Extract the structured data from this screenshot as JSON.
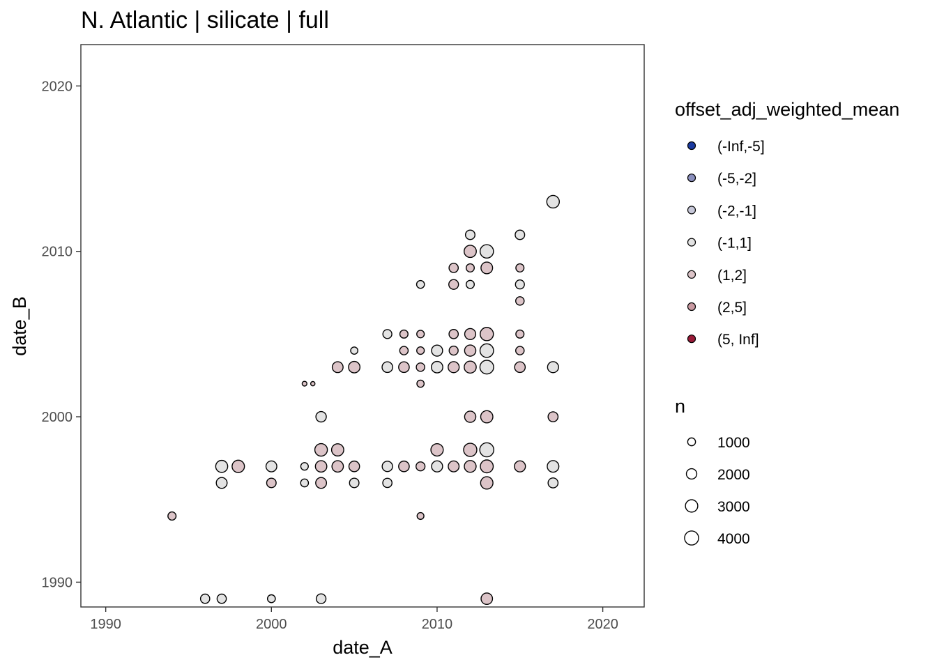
{
  "chart_data": {
    "type": "scatter",
    "title": "N. Atlantic | silicate | full",
    "xlabel": "date_A",
    "ylabel": "date_B",
    "xlim": [
      1988.5,
      2022.5
    ],
    "ylim": [
      1988.5,
      2022.5
    ],
    "x_ticks": [
      "1990",
      "2000",
      "2010",
      "2020"
    ],
    "y_ticks": [
      "1990",
      "2000",
      "2010",
      "2020"
    ],
    "grid": false,
    "legend_position": "right",
    "color_legend": {
      "title": "offset_adj_weighted_mean",
      "entries": [
        {
          "label": "(-Inf,-5]",
          "color": "#1a3aa0"
        },
        {
          "label": "(-5,-2]",
          "color": "#8a8fbd"
        },
        {
          "label": "(-2,-1]",
          "color": "#c6c7d8"
        },
        {
          "label": "(-1,1]",
          "color": "#e3e3e3"
        },
        {
          "label": "(1,2]",
          "color": "#dcc4c8"
        },
        {
          "label": "(2,5]",
          "color": "#c99aa2"
        },
        {
          "label": "(5, Inf]",
          "color": "#9a1a38"
        }
      ]
    },
    "size_legend": {
      "title": "n",
      "entries": [
        {
          "label": "1000",
          "value": 1000
        },
        {
          "label": "2000",
          "value": 2000
        },
        {
          "label": "3000",
          "value": 3000
        },
        {
          "label": "4000",
          "value": 4000
        }
      ]
    },
    "points": [
      {
        "x": 1994,
        "y": 1994,
        "n": 1100,
        "group": "(1,2]"
      },
      {
        "x": 1996,
        "y": 1989,
        "n": 1500,
        "group": "(-1,1]"
      },
      {
        "x": 1997,
        "y": 1989,
        "n": 1500,
        "group": "(-1,1]"
      },
      {
        "x": 1997,
        "y": 1996,
        "n": 2200,
        "group": "(-1,1]"
      },
      {
        "x": 1997,
        "y": 1997,
        "n": 2800,
        "group": "(-1,1]"
      },
      {
        "x": 1998,
        "y": 1997,
        "n": 3000,
        "group": "(1,2]"
      },
      {
        "x": 2000,
        "y": 1989,
        "n": 1000,
        "group": "(-1,1]"
      },
      {
        "x": 2000,
        "y": 1996,
        "n": 1600,
        "group": "(1,2]"
      },
      {
        "x": 2000,
        "y": 1997,
        "n": 2200,
        "group": "(-1,1]"
      },
      {
        "x": 2002,
        "y": 1996,
        "n": 1000,
        "group": "(-1,1]"
      },
      {
        "x": 2002,
        "y": 1997,
        "n": 900,
        "group": "(-1,1]"
      },
      {
        "x": 2002,
        "y": 2002,
        "n": 250,
        "group": "(1,2]"
      },
      {
        "x": 2002.5,
        "y": 2002,
        "n": 180,
        "group": "(1,2]"
      },
      {
        "x": 2003,
        "y": 1989,
        "n": 1700,
        "group": "(-1,1]"
      },
      {
        "x": 2003,
        "y": 1996,
        "n": 2200,
        "group": "(1,2]"
      },
      {
        "x": 2003,
        "y": 1997,
        "n": 2500,
        "group": "(1,2]"
      },
      {
        "x": 2003,
        "y": 1998,
        "n": 3100,
        "group": "(1,2]"
      },
      {
        "x": 2003,
        "y": 2000,
        "n": 2000,
        "group": "(-1,1]"
      },
      {
        "x": 2004,
        "y": 1997,
        "n": 2500,
        "group": "(1,2]"
      },
      {
        "x": 2004,
        "y": 1998,
        "n": 2900,
        "group": "(1,2]"
      },
      {
        "x": 2004,
        "y": 2003,
        "n": 2200,
        "group": "(1,2]"
      },
      {
        "x": 2005,
        "y": 1996,
        "n": 1600,
        "group": "(-1,1]"
      },
      {
        "x": 2005,
        "y": 1997,
        "n": 2100,
        "group": "(1,2]"
      },
      {
        "x": 2005,
        "y": 2003,
        "n": 2500,
        "group": "(1,2]"
      },
      {
        "x": 2005,
        "y": 2004,
        "n": 800,
        "group": "(-1,1]"
      },
      {
        "x": 2007,
        "y": 1996,
        "n": 1500,
        "group": "(-1,1]"
      },
      {
        "x": 2007,
        "y": 1997,
        "n": 2000,
        "group": "(-1,1]"
      },
      {
        "x": 2007,
        "y": 2003,
        "n": 2100,
        "group": "(-1,1]"
      },
      {
        "x": 2007,
        "y": 2005,
        "n": 1400,
        "group": "(-1,1]"
      },
      {
        "x": 2008,
        "y": 1997,
        "n": 2100,
        "group": "(1,2]"
      },
      {
        "x": 2008,
        "y": 2003,
        "n": 2100,
        "group": "(1,2]"
      },
      {
        "x": 2008,
        "y": 2004,
        "n": 1200,
        "group": "(1,2]"
      },
      {
        "x": 2008,
        "y": 2005,
        "n": 1100,
        "group": "(1,2]"
      },
      {
        "x": 2009,
        "y": 1994,
        "n": 700,
        "group": "(1,2]"
      },
      {
        "x": 2009,
        "y": 1997,
        "n": 1400,
        "group": "(1,2]"
      },
      {
        "x": 2009,
        "y": 2002,
        "n": 800,
        "group": "(1,2]"
      },
      {
        "x": 2009,
        "y": 2003,
        "n": 1200,
        "group": "(1,2]"
      },
      {
        "x": 2009,
        "y": 2004,
        "n": 900,
        "group": "(1,2]"
      },
      {
        "x": 2009,
        "y": 2005,
        "n": 900,
        "group": "(1,2]"
      },
      {
        "x": 2009,
        "y": 2008,
        "n": 1000,
        "group": "(-1,1]"
      },
      {
        "x": 2010,
        "y": 1997,
        "n": 2300,
        "group": "(-1,1]"
      },
      {
        "x": 2010,
        "y": 1998,
        "n": 3000,
        "group": "(1,2]"
      },
      {
        "x": 2010,
        "y": 2003,
        "n": 2500,
        "group": "(-1,1]"
      },
      {
        "x": 2010,
        "y": 2004,
        "n": 2300,
        "group": "(-1,1]"
      },
      {
        "x": 2011,
        "y": 1997,
        "n": 2200,
        "group": "(1,2]"
      },
      {
        "x": 2011,
        "y": 2003,
        "n": 2300,
        "group": "(1,2]"
      },
      {
        "x": 2011,
        "y": 2004,
        "n": 1400,
        "group": "(1,2]"
      },
      {
        "x": 2011,
        "y": 2005,
        "n": 1500,
        "group": "(1,2]"
      },
      {
        "x": 2011,
        "y": 2008,
        "n": 1700,
        "group": "(1,2]"
      },
      {
        "x": 2011,
        "y": 2009,
        "n": 1500,
        "group": "(1,2]"
      },
      {
        "x": 2012,
        "y": 1997,
        "n": 2700,
        "group": "(1,2]"
      },
      {
        "x": 2012,
        "y": 1998,
        "n": 3500,
        "group": "(1,2]"
      },
      {
        "x": 2012,
        "y": 2000,
        "n": 2400,
        "group": "(1,2]"
      },
      {
        "x": 2012,
        "y": 2003,
        "n": 2800,
        "group": "(1,2]"
      },
      {
        "x": 2012,
        "y": 2004,
        "n": 2400,
        "group": "(1,2]"
      },
      {
        "x": 2012,
        "y": 2005,
        "n": 2300,
        "group": "(1,2]"
      },
      {
        "x": 2012,
        "y": 2008,
        "n": 1100,
        "group": "(-1,1]"
      },
      {
        "x": 2012,
        "y": 2009,
        "n": 1100,
        "group": "(1,2]"
      },
      {
        "x": 2012,
        "y": 2010,
        "n": 2900,
        "group": "(1,2]"
      },
      {
        "x": 2012,
        "y": 2011,
        "n": 1600,
        "group": "(-1,1]"
      },
      {
        "x": 2013,
        "y": 1989,
        "n": 2500,
        "group": "(1,2]"
      },
      {
        "x": 2013,
        "y": 1996,
        "n": 3000,
        "group": "(1,2]"
      },
      {
        "x": 2013,
        "y": 1997,
        "n": 3300,
        "group": "(1,2]"
      },
      {
        "x": 2013,
        "y": 1998,
        "n": 4000,
        "group": "(-1,1]"
      },
      {
        "x": 2013,
        "y": 2000,
        "n": 2900,
        "group": "(1,2]"
      },
      {
        "x": 2013,
        "y": 2003,
        "n": 3800,
        "group": "(-1,1]"
      },
      {
        "x": 2013,
        "y": 2004,
        "n": 3700,
        "group": "(-1,1]"
      },
      {
        "x": 2013,
        "y": 2005,
        "n": 3500,
        "group": "(1,2]"
      },
      {
        "x": 2013,
        "y": 2009,
        "n": 2600,
        "group": "(1,2]"
      },
      {
        "x": 2013,
        "y": 2010,
        "n": 3600,
        "group": "(-1,1]"
      },
      {
        "x": 2015,
        "y": 1997,
        "n": 2300,
        "group": "(1,2]"
      },
      {
        "x": 2015,
        "y": 2003,
        "n": 2100,
        "group": "(1,2]"
      },
      {
        "x": 2015,
        "y": 2004,
        "n": 1200,
        "group": "(1,2]"
      },
      {
        "x": 2015,
        "y": 2005,
        "n": 1100,
        "group": "(1,2]"
      },
      {
        "x": 2015,
        "y": 2007,
        "n": 1200,
        "group": "(1,2]"
      },
      {
        "x": 2015,
        "y": 2008,
        "n": 1400,
        "group": "(-1,1]"
      },
      {
        "x": 2015,
        "y": 2009,
        "n": 1100,
        "group": "(1,2]"
      },
      {
        "x": 2015,
        "y": 2011,
        "n": 1600,
        "group": "(-1,1]"
      },
      {
        "x": 2017,
        "y": 1996,
        "n": 1800,
        "group": "(-1,1]"
      },
      {
        "x": 2017,
        "y": 1997,
        "n": 2600,
        "group": "(-1,1]"
      },
      {
        "x": 2017,
        "y": 2000,
        "n": 1800,
        "group": "(1,2]"
      },
      {
        "x": 2017,
        "y": 2003,
        "n": 2300,
        "group": "(-1,1]"
      },
      {
        "x": 2017,
        "y": 2013,
        "n": 3100,
        "group": "(-1,1]"
      }
    ]
  }
}
